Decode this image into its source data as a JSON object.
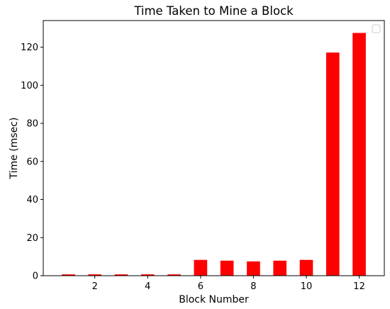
{
  "chart_data": {
    "type": "bar",
    "title": "Time Taken to Mine a Block",
    "xlabel": "Block Number",
    "ylabel": "Time (msec)",
    "x": [
      1,
      2,
      3,
      4,
      5,
      6,
      7,
      8,
      9,
      10,
      11,
      12
    ],
    "values": [
      0.7,
      0.7,
      0.7,
      0.7,
      0.7,
      8.3,
      7.9,
      7.5,
      7.9,
      8.3,
      117.2,
      127.5
    ],
    "bar_color": "#ff0000",
    "xlim": [
      0.05,
      12.95
    ],
    "ylim": [
      0,
      134
    ],
    "xticks": [
      2,
      4,
      6,
      8,
      10,
      12
    ],
    "yticks": [
      0,
      20,
      40,
      60,
      80,
      100,
      120
    ],
    "grid": false,
    "legend": {
      "placement": "top-right",
      "entries": []
    }
  }
}
